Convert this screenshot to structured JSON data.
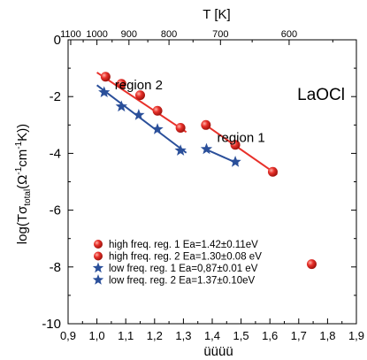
{
  "chart_data": {
    "type": "scatter",
    "title": "LaOCl",
    "xlabel": "üüüü",
    "ylabel": "log(Tσtotal(Ω⁻¹cm⁻¹K))",
    "ylabel_parts": {
      "prefix": "log(T",
      "sigma": "σ",
      "sub": "total",
      "mid1": "(Ω",
      "sup1": "-1",
      "mid2": "cm",
      "sup2": "-1",
      "suffix": "K))"
    },
    "top_xlabel": "T [K]",
    "xlim": [
      0.9,
      1.9
    ],
    "ylim": [
      -10,
      0
    ],
    "xticks": [
      0.9,
      1.0,
      1.1,
      1.2,
      1.3,
      1.4,
      1.5,
      1.6,
      1.7,
      1.8,
      1.9
    ],
    "xtick_labels": [
      "0,9",
      "1,0",
      "1,1",
      "1,2",
      "1,3",
      "1,4",
      "1,5",
      "1,6",
      "1,7",
      "1,8",
      "1,9"
    ],
    "yticks": [
      0,
      -2,
      -4,
      -6,
      -8,
      -10
    ],
    "ytick_labels": [
      "0",
      "-2",
      "-4",
      "-6",
      "-8",
      "-10"
    ],
    "top_ticks": [
      {
        "T": 1100,
        "label": "1100"
      },
      {
        "T": 1000,
        "label": "1000"
      },
      {
        "T": 900,
        "label": "900"
      },
      {
        "T": 800,
        "label": "800"
      },
      {
        "T": 700,
        "label": "700"
      },
      {
        "T": 600,
        "label": "600"
      }
    ],
    "annotations": [
      {
        "text": "region 2",
        "x": 1.145,
        "y": -1.75
      },
      {
        "text": "region 1",
        "x": 1.5,
        "y": -3.6
      }
    ],
    "series": [
      {
        "name": "high freq. reg. 1  Ea=1.42±0.11eV",
        "marker": "circle",
        "color": "#e8302a",
        "x": [
          1.378,
          1.48,
          1.61,
          1.745
        ],
        "y": [
          -3.0,
          -3.7,
          -4.65,
          -7.9
        ]
      },
      {
        "name": "high freq. reg. 2  Ea=1.30±0.08 eV",
        "marker": "circle",
        "color": "#e8302a",
        "x": [
          1.03,
          1.085,
          1.15,
          1.21,
          1.29
        ],
        "y": [
          -1.3,
          -1.55,
          -1.95,
          -2.5,
          -3.1
        ]
      },
      {
        "name": "low freq. reg. 1  Ea=0,87±0.01 eV",
        "marker": "star",
        "color": "#2a4f9a",
        "x": [
          1.38,
          1.48
        ],
        "y": [
          -3.85,
          -4.3
        ]
      },
      {
        "name": "low freq. reg. 2  Ea=1.37±0.10eV",
        "marker": "star",
        "color": "#2a4f9a",
        "x": [
          1.025,
          1.085,
          1.145,
          1.21,
          1.29
        ],
        "y": [
          -1.85,
          -2.35,
          -2.65,
          -3.15,
          -3.9
        ]
      }
    ],
    "fits": [
      {
        "color": "#e8302a",
        "x": [
          1.37,
          1.625
        ],
        "y": [
          -2.95,
          -4.75
        ]
      },
      {
        "color": "#e8302a",
        "x": [
          1.0,
          1.31
        ],
        "y": [
          -1.15,
          -3.25
        ]
      },
      {
        "color": "#2a4f9a",
        "x": [
          1.37,
          1.49
        ],
        "y": [
          -3.82,
          -4.36
        ]
      },
      {
        "color": "#2a4f9a",
        "x": [
          1.0,
          1.31
        ],
        "y": [
          -1.6,
          -3.98
        ]
      }
    ],
    "legend_position": "bottom-left",
    "grid": false
  }
}
